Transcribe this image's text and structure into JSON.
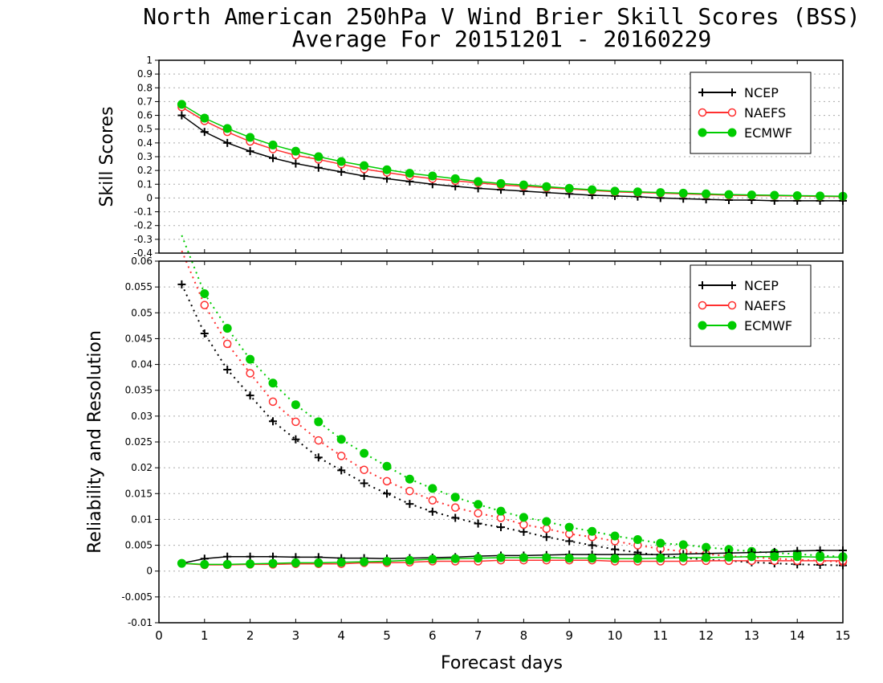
{
  "title": {
    "line1": "North American 250hPa V Wind Brier Skill Scores (BSS)",
    "line2": "Average For 20151201 - 20160229"
  },
  "xlabel": "Forecast days",
  "colors": {
    "NCEP": "#000000",
    "NAEFS": "#ff3030",
    "ECMWF": "#00cc00"
  },
  "chart_data": [
    {
      "type": "line",
      "panel": "top",
      "ylabel": "Skill Scores",
      "xlim": [
        0,
        15
      ],
      "ylim": [
        -0.4,
        1
      ],
      "yticks": [
        "1",
        "0.9",
        "0.8",
        "0.7",
        "0.6",
        "0.5",
        "0.4",
        "0.3",
        "0.2",
        "0.1",
        "0",
        "-0.1",
        "-0.2",
        "-0.3",
        "-0.4"
      ],
      "grid": true,
      "legend": "top-right",
      "x": [
        0.5,
        1,
        1.5,
        2,
        2.5,
        3,
        3.5,
        4,
        4.5,
        5,
        5.5,
        6,
        6.5,
        7,
        7.5,
        8,
        8.5,
        9,
        9.5,
        10,
        10.5,
        11,
        11.5,
        12,
        12.5,
        13,
        13.5,
        14,
        14.5,
        15
      ],
      "series": [
        {
          "name": "NCEP",
          "marker": "plus",
          "values": [
            0.6,
            0.48,
            0.4,
            0.34,
            0.29,
            0.25,
            0.22,
            0.19,
            0.16,
            0.14,
            0.12,
            0.1,
            0.085,
            0.07,
            0.06,
            0.05,
            0.04,
            0.03,
            0.02,
            0.015,
            0.01,
            0.0,
            -0.005,
            -0.01,
            -0.015,
            -0.015,
            -0.02,
            -0.02,
            -0.02,
            -0.02
          ]
        },
        {
          "name": "NAEFS",
          "marker": "open-circle",
          "values": [
            0.66,
            0.56,
            0.48,
            0.41,
            0.355,
            0.31,
            0.28,
            0.245,
            0.21,
            0.185,
            0.16,
            0.14,
            0.125,
            0.11,
            0.095,
            0.085,
            0.075,
            0.065,
            0.055,
            0.045,
            0.04,
            0.035,
            0.03,
            0.025,
            0.02,
            0.018,
            0.016,
            0.014,
            0.012,
            0.01
          ]
        },
        {
          "name": "ECMWF",
          "marker": "filled-circle",
          "values": [
            0.68,
            0.58,
            0.505,
            0.44,
            0.385,
            0.34,
            0.3,
            0.265,
            0.235,
            0.205,
            0.18,
            0.16,
            0.14,
            0.12,
            0.105,
            0.095,
            0.083,
            0.07,
            0.06,
            0.05,
            0.045,
            0.04,
            0.035,
            0.03,
            0.025,
            0.022,
            0.02,
            0.017,
            0.015,
            0.013
          ]
        }
      ]
    },
    {
      "type": "line",
      "panel": "bottom",
      "ylabel": "Reliability and Resolution",
      "xlim": [
        0,
        15
      ],
      "ylim": [
        -0.01,
        0.06
      ],
      "yticks": [
        "0.06",
        "0.055",
        "0.05",
        "0.045",
        "0.04",
        "0.035",
        "0.03",
        "0.025",
        "0.02",
        "0.015",
        "0.01",
        "0.005",
        "0",
        "-0.005",
        "-0.01"
      ],
      "xticks": [
        "0",
        "1",
        "2",
        "3",
        "4",
        "5",
        "6",
        "7",
        "8",
        "9",
        "10",
        "11",
        "12",
        "13",
        "14",
        "15"
      ],
      "grid": true,
      "legend": "top-right",
      "x": [
        0.5,
        1,
        1.5,
        2,
        2.5,
        3,
        3.5,
        4,
        4.5,
        5,
        5.5,
        6,
        6.5,
        7,
        7.5,
        8,
        8.5,
        9,
        9.5,
        10,
        10.5,
        11,
        11.5,
        12,
        12.5,
        13,
        13.5,
        14,
        14.5,
        15
      ],
      "resolution_series": [
        {
          "name": "NCEP",
          "marker": "plus",
          "values": [
            0.0555,
            0.046,
            0.039,
            0.034,
            0.029,
            0.0255,
            0.022,
            0.0195,
            0.017,
            0.015,
            0.013,
            0.0115,
            0.0103,
            0.0092,
            0.0085,
            0.0076,
            0.0066,
            0.0058,
            0.005,
            0.0042,
            0.0036,
            0.003,
            0.0026,
            0.0022,
            0.002,
            0.0017,
            0.0015,
            0.0013,
            0.0012,
            0.0011
          ]
        },
        {
          "name": "NAEFS",
          "marker": "open-circle",
          "values": [
            0.062,
            0.0515,
            0.044,
            0.0383,
            0.0328,
            0.0289,
            0.0253,
            0.0223,
            0.0196,
            0.0174,
            0.0155,
            0.0137,
            0.0123,
            0.0112,
            0.0103,
            0.009,
            0.0082,
            0.0072,
            0.0066,
            0.0058,
            0.005,
            0.0043,
            0.0038,
            0.0033,
            0.0029,
            0.0027,
            0.0024,
            0.0022,
            0.002,
            0.0018
          ]
        },
        {
          "name": "ECMWF",
          "marker": "filled-circle",
          "values": [
            0.065,
            0.0537,
            0.047,
            0.041,
            0.0364,
            0.0322,
            0.0289,
            0.0255,
            0.0228,
            0.0203,
            0.0178,
            0.016,
            0.0143,
            0.0129,
            0.0116,
            0.0104,
            0.0096,
            0.0085,
            0.0077,
            0.0068,
            0.0061,
            0.0054,
            0.0051,
            0.0046,
            0.0042,
            0.0038,
            0.0035,
            0.0033,
            0.003,
            0.0028
          ]
        }
      ],
      "reliability_series": [
        {
          "name": "NCEP",
          "values": [
            0.0015,
            0.0024,
            0.0028,
            0.0028,
            0.0028,
            0.0027,
            0.0027,
            0.0025,
            0.0025,
            0.0024,
            0.0025,
            0.0026,
            0.0027,
            0.0029,
            0.003,
            0.003,
            0.0031,
            0.0032,
            0.0032,
            0.0032,
            0.0032,
            0.0032,
            0.0033,
            0.0034,
            0.0035,
            0.0036,
            0.0037,
            0.0039,
            0.004,
            0.004
          ]
        },
        {
          "name": "NAEFS",
          "values": [
            0.0015,
            0.0012,
            0.0012,
            0.0013,
            0.0013,
            0.0014,
            0.0014,
            0.0014,
            0.0016,
            0.0016,
            0.0017,
            0.0019,
            0.0019,
            0.0019,
            0.0021,
            0.0021,
            0.0021,
            0.0021,
            0.0021,
            0.0019,
            0.0019,
            0.0019,
            0.0019,
            0.002,
            0.002,
            0.002,
            0.002,
            0.002,
            0.002,
            0.002
          ]
        },
        {
          "name": "ECMWF",
          "values": [
            0.0015,
            0.0013,
            0.0013,
            0.0014,
            0.0015,
            0.0016,
            0.0016,
            0.0017,
            0.0018,
            0.0019,
            0.0021,
            0.0023,
            0.0024,
            0.0025,
            0.0026,
            0.0026,
            0.0026,
            0.0025,
            0.0025,
            0.0024,
            0.0024,
            0.0025,
            0.0026,
            0.0026,
            0.0027,
            0.0028,
            0.0028,
            0.0028,
            0.0027,
            0.0027
          ]
        }
      ]
    }
  ]
}
